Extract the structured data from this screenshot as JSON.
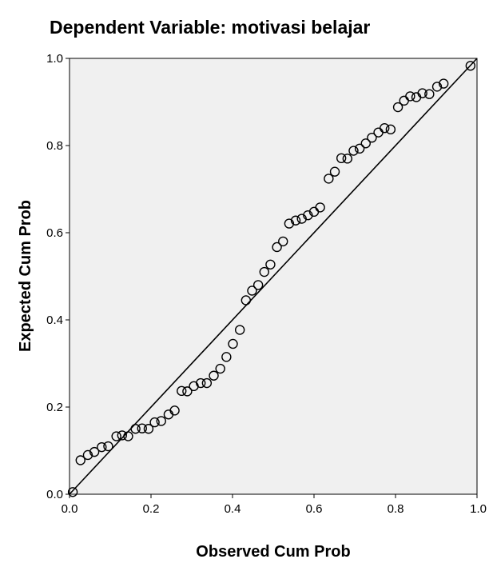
{
  "chart_data": {
    "type": "scatter",
    "title": "Dependent Variable: motivasi belajar",
    "xlabel": "Observed Cum Prob",
    "ylabel": "Expected Cum Prob",
    "xlim": [
      0,
      1
    ],
    "ylim": [
      0,
      1
    ],
    "xticks": [
      "0.0",
      "0.2",
      "0.4",
      "0.6",
      "0.8",
      "1.0"
    ],
    "yticks": [
      "0.0",
      "0.2",
      "0.4",
      "0.6",
      "0.8",
      "1.0"
    ],
    "grid": false,
    "reference_line": [
      [
        0,
        0
      ],
      [
        1,
        1
      ]
    ],
    "colors": {
      "plot_background": "#f0f0f0",
      "marker": "#000000",
      "line": "#000000"
    },
    "points": [
      [
        0.008,
        0.005
      ],
      [
        0.027,
        0.078
      ],
      [
        0.045,
        0.09
      ],
      [
        0.061,
        0.097
      ],
      [
        0.079,
        0.108
      ],
      [
        0.095,
        0.11
      ],
      [
        0.115,
        0.133
      ],
      [
        0.129,
        0.135
      ],
      [
        0.144,
        0.133
      ],
      [
        0.162,
        0.15
      ],
      [
        0.178,
        0.151
      ],
      [
        0.194,
        0.15
      ],
      [
        0.209,
        0.165
      ],
      [
        0.225,
        0.168
      ],
      [
        0.243,
        0.183
      ],
      [
        0.258,
        0.192
      ],
      [
        0.275,
        0.237
      ],
      [
        0.289,
        0.236
      ],
      [
        0.305,
        0.248
      ],
      [
        0.322,
        0.255
      ],
      [
        0.337,
        0.255
      ],
      [
        0.354,
        0.272
      ],
      [
        0.37,
        0.288
      ],
      [
        0.385,
        0.315
      ],
      [
        0.401,
        0.345
      ],
      [
        0.418,
        0.377
      ],
      [
        0.433,
        0.445
      ],
      [
        0.448,
        0.467
      ],
      [
        0.463,
        0.48
      ],
      [
        0.478,
        0.51
      ],
      [
        0.493,
        0.527
      ],
      [
        0.509,
        0.567
      ],
      [
        0.524,
        0.58
      ],
      [
        0.539,
        0.621
      ],
      [
        0.555,
        0.628
      ],
      [
        0.57,
        0.632
      ],
      [
        0.585,
        0.64
      ],
      [
        0.6,
        0.648
      ],
      [
        0.615,
        0.658
      ],
      [
        0.636,
        0.724
      ],
      [
        0.651,
        0.74
      ],
      [
        0.667,
        0.771
      ],
      [
        0.682,
        0.77
      ],
      [
        0.697,
        0.788
      ],
      [
        0.712,
        0.793
      ],
      [
        0.727,
        0.805
      ],
      [
        0.742,
        0.818
      ],
      [
        0.758,
        0.83
      ],
      [
        0.773,
        0.84
      ],
      [
        0.788,
        0.837
      ],
      [
        0.806,
        0.888
      ],
      [
        0.821,
        0.903
      ],
      [
        0.836,
        0.913
      ],
      [
        0.851,
        0.911
      ],
      [
        0.866,
        0.92
      ],
      [
        0.883,
        0.918
      ],
      [
        0.902,
        0.935
      ],
      [
        0.918,
        0.942
      ],
      [
        0.984,
        0.983
      ]
    ]
  }
}
